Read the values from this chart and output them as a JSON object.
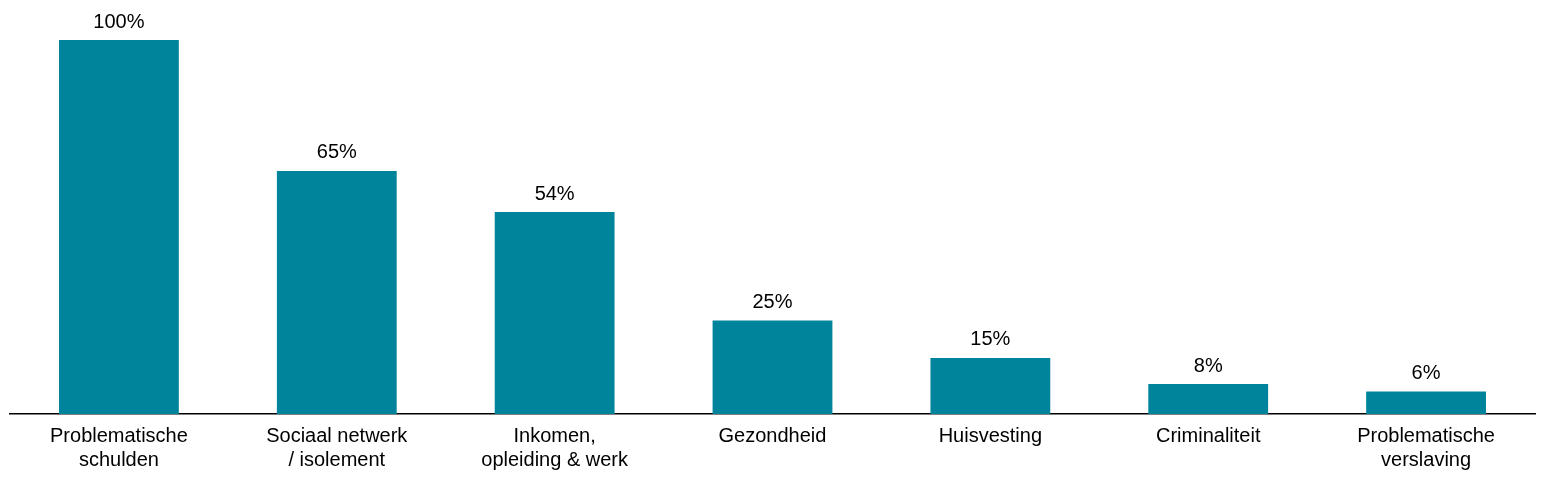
{
  "chart_data": {
    "type": "bar",
    "categories": [
      "Problematische schulden",
      "Sociaal netwerk / isolement",
      "Inkomen, opleiding & werk",
      "Gezondheid",
      "Huisvesting",
      "Criminaliteit",
      "Problematische verslaving"
    ],
    "values": [
      100,
      65,
      54,
      25,
      15,
      8,
      6
    ],
    "value_labels": [
      "100%",
      "65%",
      "54%",
      "25%",
      "15%",
      "8%",
      "6%"
    ],
    "color": "#00849b",
    "grid": false,
    "legend": false
  }
}
